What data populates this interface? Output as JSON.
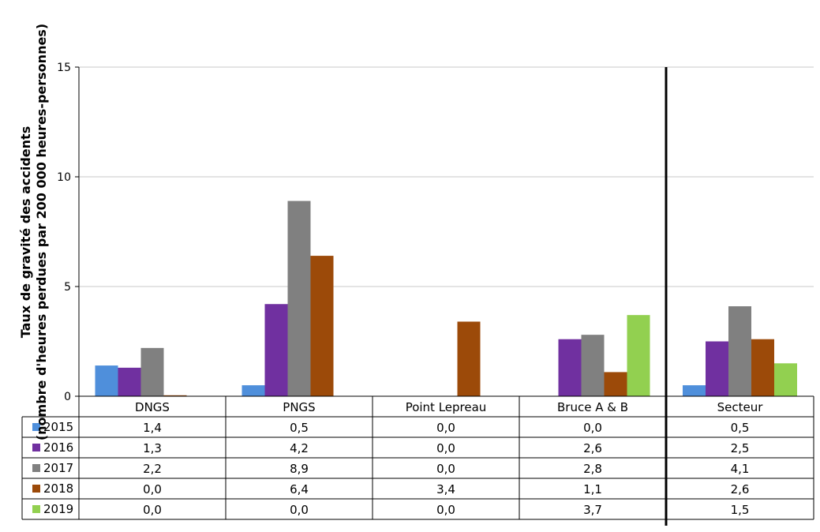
{
  "chart_data": {
    "type": "bar",
    "ylabel_line1": "Taux de gravité des accidents",
    "ylabel_line2": "(nombre d'heures perdues par 200 000 heures-personnes)",
    "ylim": [
      0,
      15
    ],
    "yticks": [
      0,
      5,
      10,
      15
    ],
    "grid": true,
    "legend": "data-table",
    "categories": [
      "DNGS",
      "PNGS",
      "Point Lepreau",
      "Bruce A & B",
      "Secteur"
    ],
    "series": [
      {
        "name": "2015",
        "color": "#4f8fdb",
        "values": [
          1.4,
          0.5,
          0.0,
          0.0,
          0.5
        ],
        "labels": [
          "1,4",
          "0,5",
          "0,0",
          "0,0",
          "0,5"
        ]
      },
      {
        "name": "2016",
        "color": "#7030a0",
        "values": [
          1.3,
          4.2,
          0.0,
          2.6,
          2.5
        ],
        "labels": [
          "1,3",
          "4,2",
          "0,0",
          "2,6",
          "2,5"
        ]
      },
      {
        "name": "2017",
        "color": "#808080",
        "values": [
          2.2,
          8.9,
          0.0,
          2.8,
          4.1
        ],
        "labels": [
          "2,2",
          "8,9",
          "0,0",
          "2,8",
          "4,1"
        ]
      },
      {
        "name": "2018",
        "color": "#9c4a09",
        "values": [
          0.0,
          6.4,
          3.4,
          1.1,
          2.6
        ],
        "labels": [
          "0,0",
          "6,4",
          "3,4",
          "1,1",
          "2,6"
        ]
      },
      {
        "name": "2019",
        "color": "#92d050",
        "values": [
          0.0,
          0.0,
          0.0,
          3.7,
          1.5
        ],
        "labels": [
          "0,0",
          "0,0",
          "0,0",
          "3,7",
          "1,5"
        ]
      }
    ]
  }
}
